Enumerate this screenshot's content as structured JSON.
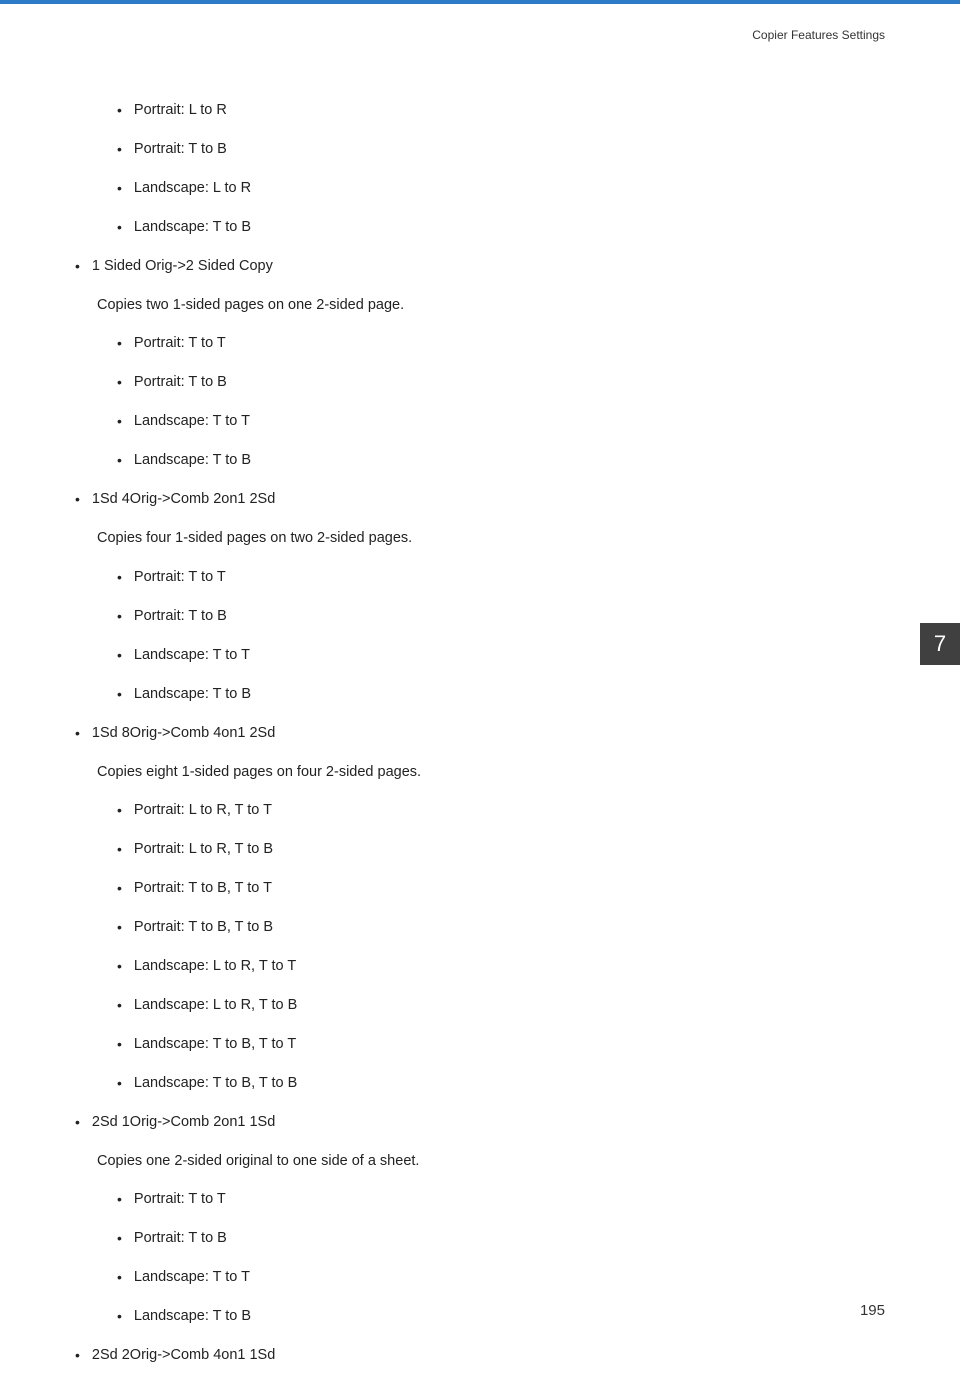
{
  "header": {
    "section_title": "Copier Features Settings"
  },
  "chapter_number": "7",
  "page_number": "195",
  "content": [
    {
      "type": "bullet",
      "level": 2,
      "text": "Portrait: L to R"
    },
    {
      "type": "bullet",
      "level": 2,
      "text": "Portrait: T to B"
    },
    {
      "type": "bullet",
      "level": 2,
      "text": "Landscape: L to R"
    },
    {
      "type": "bullet",
      "level": 2,
      "text": "Landscape: T to B"
    },
    {
      "type": "bullet",
      "level": 1,
      "text": "1 Sided Orig->2 Sided Copy"
    },
    {
      "type": "description",
      "text": "Copies two 1-sided pages on one 2-sided page."
    },
    {
      "type": "bullet",
      "level": 2,
      "text": "Portrait: T to T"
    },
    {
      "type": "bullet",
      "level": 2,
      "text": "Portrait: T to B"
    },
    {
      "type": "bullet",
      "level": 2,
      "text": "Landscape: T to T"
    },
    {
      "type": "bullet",
      "level": 2,
      "text": "Landscape: T to B"
    },
    {
      "type": "bullet",
      "level": 1,
      "text": "1Sd 4Orig->Comb 2on1 2Sd"
    },
    {
      "type": "description",
      "text": "Copies four 1-sided pages on two 2-sided pages."
    },
    {
      "type": "bullet",
      "level": 2,
      "text": "Portrait: T to T"
    },
    {
      "type": "bullet",
      "level": 2,
      "text": "Portrait: T to B"
    },
    {
      "type": "bullet",
      "level": 2,
      "text": "Landscape: T to T"
    },
    {
      "type": "bullet",
      "level": 2,
      "text": "Landscape: T to B"
    },
    {
      "type": "bullet",
      "level": 1,
      "text": "1Sd 8Orig->Comb 4on1 2Sd"
    },
    {
      "type": "description",
      "text": "Copies eight 1-sided pages on four 2-sided pages."
    },
    {
      "type": "bullet",
      "level": 2,
      "text": "Portrait: L to R, T to T"
    },
    {
      "type": "bullet",
      "level": 2,
      "text": "Portrait: L to R, T to B"
    },
    {
      "type": "bullet",
      "level": 2,
      "text": "Portrait: T to B, T to T"
    },
    {
      "type": "bullet",
      "level": 2,
      "text": "Portrait: T to B, T to B"
    },
    {
      "type": "bullet",
      "level": 2,
      "text": "Landscape: L to R, T to T"
    },
    {
      "type": "bullet",
      "level": 2,
      "text": "Landscape: L to R, T to B"
    },
    {
      "type": "bullet",
      "level": 2,
      "text": "Landscape: T to B, T to T"
    },
    {
      "type": "bullet",
      "level": 2,
      "text": "Landscape: T to B, T to B"
    },
    {
      "type": "bullet",
      "level": 1,
      "text": "2Sd 1Orig->Comb 2on1 1Sd"
    },
    {
      "type": "description",
      "text": "Copies one 2-sided original to one side of a sheet."
    },
    {
      "type": "bullet",
      "level": 2,
      "text": "Portrait: T to T"
    },
    {
      "type": "bullet",
      "level": 2,
      "text": "Portrait: T to B"
    },
    {
      "type": "bullet",
      "level": 2,
      "text": "Landscape: T to T"
    },
    {
      "type": "bullet",
      "level": 2,
      "text": "Landscape: T to B"
    },
    {
      "type": "bullet",
      "level": 1,
      "text": "2Sd 2Orig->Comb 4on1 1Sd"
    }
  ]
}
